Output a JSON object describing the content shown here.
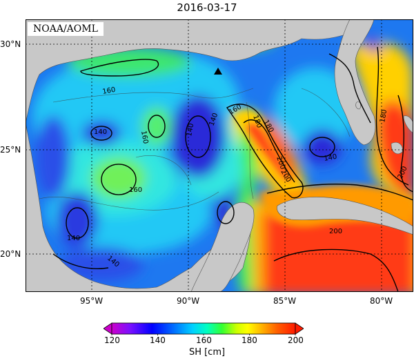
{
  "title": "2016-03-17",
  "credit": "NOAA/AOML",
  "axes": {
    "lon_ticks": [
      "95°W",
      "90°W",
      "85°W",
      "80°W"
    ],
    "lat_ticks": [
      "30°N",
      "25°N",
      "20°N"
    ]
  },
  "contour_labels": [
    "160",
    "160",
    "140",
    "160",
    "180",
    "200",
    "140",
    "180",
    "200",
    "140",
    "140",
    "140",
    "160",
    "200",
    "140",
    "180",
    "200"
  ],
  "marker": "triangle",
  "colorbar": {
    "ticks": [
      "120",
      "140",
      "160",
      "180",
      "200"
    ],
    "units": "SH [cm]",
    "colors": [
      "#cc00cc",
      "#6600ff",
      "#0000ff",
      "#0066ff",
      "#00ccff",
      "#00ffcc",
      "#33ff33",
      "#ccff00",
      "#ffff00",
      "#ffcc00",
      "#ff9900",
      "#ff6600",
      "#ff2200"
    ]
  },
  "colors": {
    "land": "#c8c8c8",
    "deep_blue": "#2a2ad8",
    "blue": "#1e78f0",
    "cyan": "#1ee6ee",
    "green": "#28e650",
    "yellow": "#ffe600",
    "orange": "#ff9600",
    "red": "#ff2814"
  }
}
